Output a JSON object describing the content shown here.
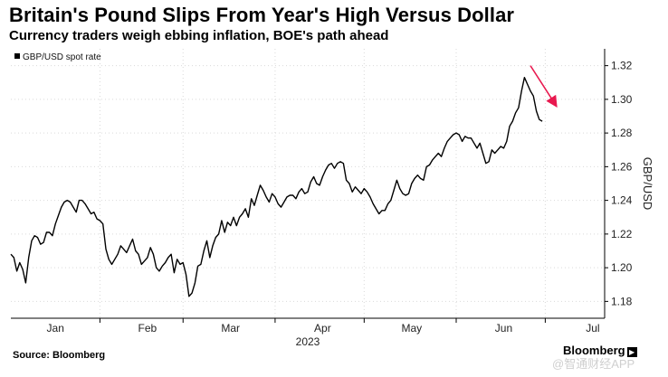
{
  "header": {
    "title": "Britain's Pound Slips From Year's High Versus Dollar",
    "subtitle": "Currency traders weigh ebbing inflation, BOE's path ahead"
  },
  "footer": {
    "source": "Source: Bloomberg",
    "brand": "Bloomberg",
    "watermark": "@智通财经APP"
  },
  "chart_data": {
    "type": "line",
    "title": "Britain's Pound Slips From Year's High Versus Dollar",
    "subtitle": "Currency traders weigh ebbing inflation, BOE's path ahead",
    "xlabel": "2023",
    "ylabel": "GBP/USD",
    "y_axis_side": "right",
    "ylim": [
      1.17,
      1.33
    ],
    "yticks": [
      1.18,
      1.2,
      1.22,
      1.24,
      1.26,
      1.28,
      1.3,
      1.32
    ],
    "ytick_labels": [
      "1.18",
      "1.20",
      "1.22",
      "1.24",
      "1.26",
      "1.28",
      "1.30",
      "1.32"
    ],
    "xlim": [
      0,
      200
    ],
    "month_labels": [
      {
        "label": "Jan",
        "x": 15
      },
      {
        "label": "Feb",
        "x": 46
      },
      {
        "label": "Mar",
        "x": 74
      },
      {
        "label": "Apr",
        "x": 105
      },
      {
        "label": "May",
        "x": 135
      },
      {
        "label": "Jun",
        "x": 166
      },
      {
        "label": "Jul",
        "x": 196
      }
    ],
    "month_boundaries": [
      30,
      58,
      89,
      119,
      150,
      180
    ],
    "legend": "GBP/USD spot rate",
    "legend_position": "top-left",
    "series": [
      {
        "name": "GBP/USD spot rate",
        "points": [
          [
            0,
            1.208
          ],
          [
            1,
            1.206
          ],
          [
            2,
            1.198
          ],
          [
            3,
            1.203
          ],
          [
            4,
            1.199
          ],
          [
            5,
            1.191
          ],
          [
            6,
            1.206
          ],
          [
            7,
            1.216
          ],
          [
            8,
            1.219
          ],
          [
            9,
            1.218
          ],
          [
            10,
            1.214
          ],
          [
            11,
            1.215
          ],
          [
            12,
            1.221
          ],
          [
            13,
            1.221
          ],
          [
            14,
            1.219
          ],
          [
            15,
            1.226
          ],
          [
            16,
            1.231
          ],
          [
            17,
            1.236
          ],
          [
            18,
            1.239
          ],
          [
            19,
            1.24
          ],
          [
            20,
            1.239
          ],
          [
            21,
            1.236
          ],
          [
            22,
            1.233
          ],
          [
            23,
            1.24
          ],
          [
            24,
            1.24
          ],
          [
            25,
            1.238
          ],
          [
            26,
            1.235
          ],
          [
            27,
            1.232
          ],
          [
            28,
            1.233
          ],
          [
            29,
            1.229
          ],
          [
            30,
            1.228
          ],
          [
            31,
            1.226
          ],
          [
            32,
            1.211
          ],
          [
            33,
            1.205
          ],
          [
            34,
            1.202
          ],
          [
            35,
            1.205
          ],
          [
            36,
            1.208
          ],
          [
            37,
            1.213
          ],
          [
            38,
            1.211
          ],
          [
            39,
            1.209
          ],
          [
            40,
            1.213
          ],
          [
            41,
            1.217
          ],
          [
            42,
            1.21
          ],
          [
            43,
            1.208
          ],
          [
            44,
            1.202
          ],
          [
            45,
            1.204
          ],
          [
            46,
            1.206
          ],
          [
            47,
            1.212
          ],
          [
            48,
            1.208
          ],
          [
            49,
            1.2
          ],
          [
            50,
            1.198
          ],
          [
            51,
            1.201
          ],
          [
            52,
            1.203
          ],
          [
            53,
            1.206
          ],
          [
            54,
            1.208
          ],
          [
            55,
            1.197
          ],
          [
            56,
            1.205
          ],
          [
            57,
            1.202
          ],
          [
            58,
            1.203
          ],
          [
            59,
            1.196
          ],
          [
            60,
            1.183
          ],
          [
            61,
            1.185
          ],
          [
            62,
            1.191
          ],
          [
            63,
            1.201
          ],
          [
            64,
            1.202
          ],
          [
            65,
            1.21
          ],
          [
            66,
            1.216
          ],
          [
            67,
            1.206
          ],
          [
            68,
            1.213
          ],
          [
            69,
            1.218
          ],
          [
            70,
            1.22
          ],
          [
            71,
            1.228
          ],
          [
            72,
            1.221
          ],
          [
            73,
            1.227
          ],
          [
            74,
            1.225
          ],
          [
            75,
            1.23
          ],
          [
            76,
            1.225
          ],
          [
            77,
            1.23
          ],
          [
            78,
            1.232
          ],
          [
            79,
            1.235
          ],
          [
            80,
            1.23
          ],
          [
            81,
            1.241
          ],
          [
            82,
            1.237
          ],
          [
            83,
            1.243
          ],
          [
            84,
            1.249
          ],
          [
            85,
            1.246
          ],
          [
            86,
            1.242
          ],
          [
            87,
            1.239
          ],
          [
            88,
            1.244
          ],
          [
            89,
            1.242
          ],
          [
            90,
            1.238
          ],
          [
            91,
            1.236
          ],
          [
            92,
            1.239
          ],
          [
            93,
            1.242
          ],
          [
            94,
            1.243
          ],
          [
            95,
            1.243
          ],
          [
            96,
            1.241
          ],
          [
            97,
            1.245
          ],
          [
            98,
            1.247
          ],
          [
            99,
            1.244
          ],
          [
            100,
            1.245
          ],
          [
            101,
            1.251
          ],
          [
            102,
            1.254
          ],
          [
            103,
            1.25
          ],
          [
            104,
            1.249
          ],
          [
            105,
            1.254
          ],
          [
            106,
            1.258
          ],
          [
            107,
            1.261
          ],
          [
            108,
            1.262
          ],
          [
            109,
            1.259
          ],
          [
            110,
            1.262
          ],
          [
            111,
            1.263
          ],
          [
            112,
            1.262
          ],
          [
            113,
            1.252
          ],
          [
            114,
            1.25
          ],
          [
            115,
            1.245
          ],
          [
            116,
            1.248
          ],
          [
            117,
            1.246
          ],
          [
            118,
            1.244
          ],
          [
            119,
            1.247
          ],
          [
            120,
            1.245
          ],
          [
            121,
            1.242
          ],
          [
            122,
            1.238
          ],
          [
            123,
            1.235
          ],
          [
            124,
            1.232
          ],
          [
            125,
            1.234
          ],
          [
            126,
            1.234
          ],
          [
            127,
            1.238
          ],
          [
            128,
            1.24
          ],
          [
            129,
            1.246
          ],
          [
            130,
            1.252
          ],
          [
            131,
            1.247
          ],
          [
            132,
            1.244
          ],
          [
            133,
            1.243
          ],
          [
            134,
            1.244
          ],
          [
            135,
            1.25
          ],
          [
            136,
            1.253
          ],
          [
            137,
            1.255
          ],
          [
            138,
            1.253
          ],
          [
            139,
            1.252
          ],
          [
            140,
            1.26
          ],
          [
            141,
            1.261
          ],
          [
            142,
            1.264
          ],
          [
            143,
            1.266
          ],
          [
            144,
            1.268
          ],
          [
            145,
            1.266
          ],
          [
            146,
            1.271
          ],
          [
            147,
            1.275
          ],
          [
            148,
            1.277
          ],
          [
            149,
            1.279
          ],
          [
            150,
            1.28
          ],
          [
            151,
            1.279
          ],
          [
            152,
            1.275
          ],
          [
            153,
            1.278
          ],
          [
            154,
            1.277
          ],
          [
            155,
            1.277
          ],
          [
            156,
            1.274
          ],
          [
            157,
            1.271
          ],
          [
            158,
            1.274
          ],
          [
            159,
            1.268
          ],
          [
            160,
            1.262
          ],
          [
            161,
            1.263
          ],
          [
            162,
            1.27
          ],
          [
            163,
            1.268
          ],
          [
            164,
            1.27
          ],
          [
            165,
            1.272
          ],
          [
            166,
            1.271
          ],
          [
            167,
            1.275
          ],
          [
            168,
            1.284
          ],
          [
            169,
            1.287
          ],
          [
            170,
            1.292
          ],
          [
            171,
            1.295
          ],
          [
            172,
            1.305
          ],
          [
            173,
            1.313
          ],
          [
            174,
            1.309
          ],
          [
            175,
            1.305
          ],
          [
            176,
            1.302
          ],
          [
            177,
            1.293
          ],
          [
            178,
            1.288
          ],
          [
            179,
            1.287
          ]
        ]
      }
    ],
    "annotations": [
      {
        "type": "arrow",
        "color": "#e8194f",
        "from": [
          175,
          1.32
        ],
        "to": [
          183,
          1.298
        ],
        "meaning": "slips from year's high"
      }
    ]
  }
}
